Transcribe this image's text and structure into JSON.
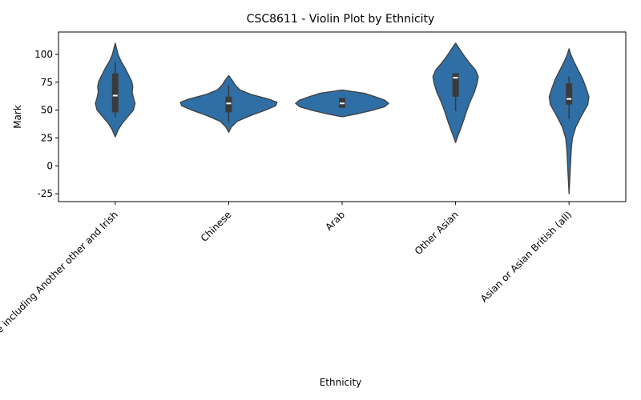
{
  "chart_data": {
    "type": "violin",
    "title": "CSC8611 - Violin Plot by Ethnicity",
    "xlabel": "Ethnicity",
    "ylabel": "Mark",
    "ylim": [
      -32,
      120
    ],
    "yticks": [
      -25,
      0,
      25,
      50,
      75,
      100
    ],
    "grid": false,
    "legend": "none",
    "color": "#2f6fa6",
    "box_color": "#3a3a3a",
    "median_color": "#ffffff",
    "categories": [
      "White including Another other and Irish",
      "Chinese",
      "Arab",
      "Other Asian",
      "Asian or Asian British (all)"
    ],
    "series": [
      {
        "category": "White including Another other and Irish",
        "q1": 48,
        "median": 63,
        "q3": 83,
        "whisker_low": 44,
        "whisker_high": 93,
        "density": [
          [
            26,
            0.0
          ],
          [
            32,
            0.05
          ],
          [
            38,
            0.12
          ],
          [
            44,
            0.22
          ],
          [
            50,
            0.32
          ],
          [
            56,
            0.35
          ],
          [
            61,
            0.32
          ],
          [
            66,
            0.3
          ],
          [
            71,
            0.31
          ],
          [
            76,
            0.29
          ],
          [
            82,
            0.23
          ],
          [
            88,
            0.17
          ],
          [
            94,
            0.1
          ],
          [
            100,
            0.05
          ],
          [
            106,
            0.02
          ],
          [
            110,
            0.0
          ]
        ]
      },
      {
        "category": "Chinese",
        "q1": 48,
        "median": 56,
        "q3": 62,
        "whisker_low": 39,
        "whisker_high": 72,
        "density": [
          [
            30,
            0.0
          ],
          [
            35,
            0.05
          ],
          [
            40,
            0.15
          ],
          [
            45,
            0.38
          ],
          [
            50,
            0.65
          ],
          [
            54,
            0.83
          ],
          [
            57,
            0.85
          ],
          [
            60,
            0.7
          ],
          [
            64,
            0.4
          ],
          [
            68,
            0.2
          ],
          [
            72,
            0.12
          ],
          [
            77,
            0.06
          ],
          [
            81,
            0.0
          ]
        ]
      },
      {
        "category": "Arab",
        "q1": 52,
        "median": 56,
        "q3": 61,
        "whisker_low": 52,
        "whisker_high": 61,
        "density": [
          [
            44,
            0.0
          ],
          [
            47,
            0.3
          ],
          [
            50,
            0.55
          ],
          [
            53,
            0.75
          ],
          [
            56,
            0.82
          ],
          [
            59,
            0.75
          ],
          [
            62,
            0.58
          ],
          [
            65,
            0.4
          ],
          [
            68,
            0.0
          ]
        ]
      },
      {
        "category": "Other Asian",
        "q1": 62,
        "median": 79,
        "q3": 83,
        "whisker_low": 49,
        "whisker_high": 83,
        "density": [
          [
            21,
            0.0
          ],
          [
            28,
            0.05
          ],
          [
            35,
            0.1
          ],
          [
            42,
            0.15
          ],
          [
            50,
            0.2
          ],
          [
            58,
            0.26
          ],
          [
            66,
            0.33
          ],
          [
            74,
            0.38
          ],
          [
            80,
            0.4
          ],
          [
            86,
            0.35
          ],
          [
            92,
            0.25
          ],
          [
            98,
            0.16
          ],
          [
            104,
            0.08
          ],
          [
            110,
            0.0
          ]
        ]
      },
      {
        "category": "Asian or Asian British (all)",
        "q1": 55,
        "median": 60,
        "q3": 74,
        "whisker_low": 42,
        "whisker_high": 80,
        "density": [
          [
            -25,
            0.0
          ],
          [
            -15,
            0.01
          ],
          [
            -5,
            0.02
          ],
          [
            5,
            0.03
          ],
          [
            15,
            0.04
          ],
          [
            25,
            0.06
          ],
          [
            35,
            0.12
          ],
          [
            45,
            0.22
          ],
          [
            55,
            0.33
          ],
          [
            62,
            0.35
          ],
          [
            70,
            0.3
          ],
          [
            78,
            0.24
          ],
          [
            86,
            0.16
          ],
          [
            94,
            0.08
          ],
          [
            100,
            0.03
          ],
          [
            105,
            0.0
          ]
        ]
      }
    ]
  }
}
